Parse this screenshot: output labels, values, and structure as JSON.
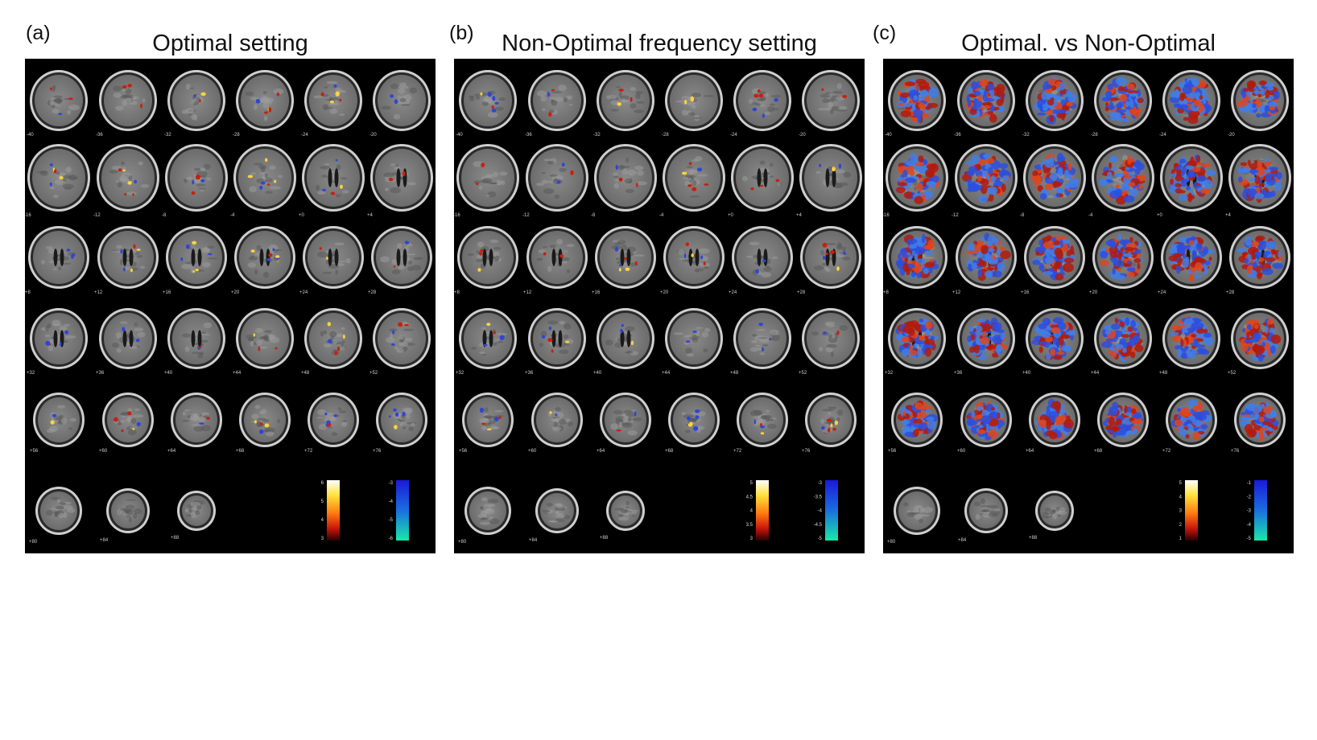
{
  "panels": [
    {
      "id": "a",
      "letter": "(a)",
      "title": "Optimal setting",
      "mode": "sparse",
      "slice_labels": [
        "-40",
        "-36",
        "-32",
        "-28",
        "-24",
        "-20",
        "-16",
        "-12",
        "-8",
        "-4",
        "+0",
        "+4",
        "+8",
        "+12",
        "+16",
        "+20",
        "+24",
        "+28",
        "+32",
        "+36",
        "+40",
        "+44",
        "+48",
        "+52",
        "+56",
        "+60",
        "+64",
        "+68",
        "+72",
        "+76",
        "+80",
        "+84",
        "+88"
      ],
      "pos_scale": [
        "6",
        "5",
        "4",
        "3"
      ],
      "neg_scale": [
        "-3",
        "-4",
        "-5",
        "-6"
      ]
    },
    {
      "id": "b",
      "letter": "(b)",
      "title": "Non-Optimal frequency setting",
      "mode": "sparse",
      "slice_labels": [
        "-40",
        "-36",
        "-32",
        "-28",
        "-24",
        "-20",
        "-16",
        "-12",
        "-8",
        "-4",
        "+0",
        "+4",
        "+8",
        "+12",
        "+16",
        "+20",
        "+24",
        "+28",
        "+32",
        "+36",
        "+40",
        "+44",
        "+48",
        "+52",
        "+56",
        "+60",
        "+64",
        "+68",
        "+72",
        "+76",
        "+80",
        "+84",
        "+88"
      ],
      "pos_scale": [
        "5",
        "4.5",
        "4",
        "3.5",
        "3"
      ],
      "neg_scale": [
        "-3",
        "-3.5",
        "-4",
        "-4.5",
        "-5"
      ]
    },
    {
      "id": "c",
      "letter": "(c)",
      "title": "Optimal. vs Non-Optimal",
      "mode": "dense",
      "slice_labels": [
        "-40",
        "-36",
        "-32",
        "-28",
        "-24",
        "-20",
        "-16",
        "-12",
        "-8",
        "-4",
        "+0",
        "+4",
        "+8",
        "+12",
        "+16",
        "+20",
        "+24",
        "+28",
        "+32",
        "+36",
        "+40",
        "+44",
        "+48",
        "+52",
        "+56",
        "+60",
        "+64",
        "+68",
        "+72",
        "+76",
        "+80",
        "+84",
        "+88"
      ],
      "pos_scale": [
        "5",
        "4",
        "3",
        "2",
        "1"
      ],
      "neg_scale": [
        "-1",
        "-2",
        "-3",
        "-4",
        "-5"
      ]
    }
  ]
}
